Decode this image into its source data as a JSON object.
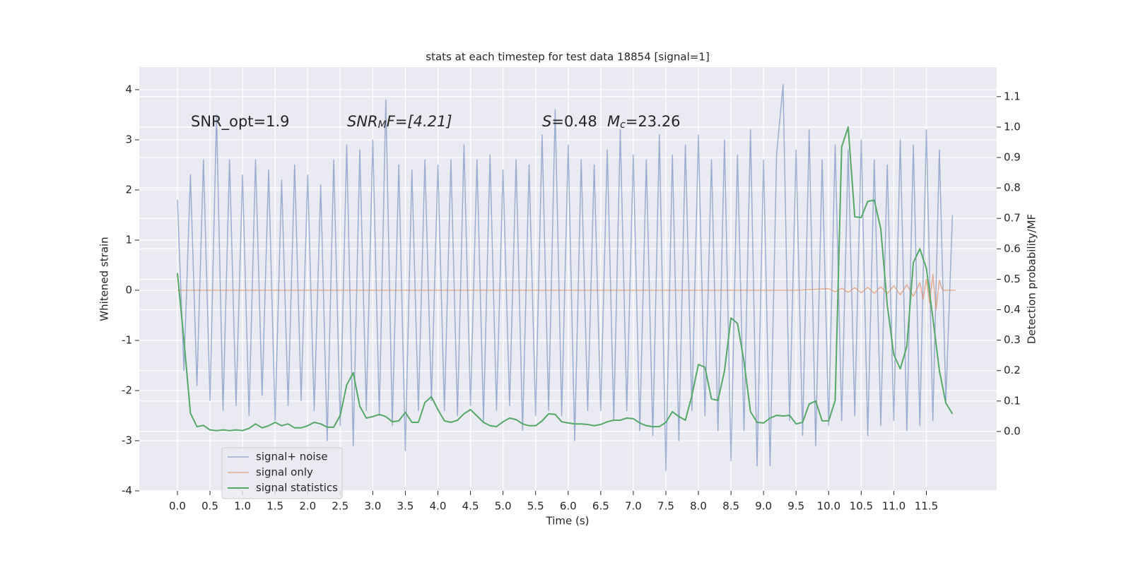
{
  "chart_data": {
    "type": "line",
    "title": "stats at each timestep for test data 18854 [signal=1]",
    "xlabel": "Time (s)",
    "ylabel": "Whitened strain",
    "y2label": "Detection probability/MF",
    "annotations": [
      {
        "parts": [
          {
            "text": "SNR_opt=1.9",
            "style": "normal"
          }
        ]
      },
      {
        "parts": [
          {
            "text": "SNR",
            "style": "italic"
          },
          {
            "text": "M",
            "style": "italic-sub"
          },
          {
            "text": "F=[4.21]",
            "style": "italic"
          }
        ]
      },
      {
        "parts": [
          {
            "text": "S",
            "style": "italic"
          },
          {
            "text": "=0.48",
            "style": "normal"
          }
        ]
      },
      {
        "parts": [
          {
            "text": "M",
            "style": "italic"
          },
          {
            "text": "c",
            "style": "italic-sub"
          },
          {
            "text": "=23.26",
            "style": "normal"
          }
        ]
      }
    ],
    "xlim": [
      -0.586,
      12.58
    ],
    "xticks": [
      {
        "value": 0,
        "label": "0.0"
      },
      0.5,
      {
        "value": 1,
        "label": "1.0"
      },
      1.5,
      {
        "value": 2,
        "label": "2.0"
      },
      2.5,
      {
        "value": 3,
        "label": "3.0"
      },
      3.5,
      {
        "value": 4,
        "label": "4.0"
      },
      4.5,
      {
        "value": 5,
        "label": "5.0"
      },
      5.5,
      {
        "value": 6,
        "label": "6.0"
      },
      6.5,
      {
        "value": 7,
        "label": "7.0"
      },
      7.5,
      {
        "value": 8,
        "label": "8.0"
      },
      8.5,
      {
        "value": 9,
        "label": "9.0"
      },
      9.5,
      {
        "value": 10,
        "label": "10.0"
      },
      10.5,
      {
        "value": 11,
        "label": "11.0"
      },
      11.5
    ],
    "ylim": [
      -4,
      4.45
    ],
    "yticks": [
      -4,
      -3,
      -2,
      -1,
      0,
      1,
      2,
      3,
      4
    ],
    "y2lim": [
      -0.195,
      1.197
    ],
    "y2ticks": [
      {
        "value": 0,
        "label": "0.0"
      },
      0.1,
      0.2,
      0.3,
      0.4,
      0.5,
      0.6,
      0.7,
      0.8,
      0.9,
      {
        "value": 1,
        "label": "1.0"
      },
      1.1
    ],
    "grid": true,
    "legend": "lower left",
    "x": [
      0.0,
      0.1,
      0.2,
      0.3,
      0.4,
      0.5,
      0.6,
      0.7,
      0.8,
      0.9,
      1.0,
      1.1,
      1.2,
      1.3,
      1.4,
      1.5,
      1.6,
      1.7,
      1.8,
      1.9,
      2.0,
      2.1,
      2.2,
      2.3,
      2.4,
      2.5,
      2.6,
      2.7,
      2.8,
      2.9,
      3.0,
      3.1,
      3.2,
      3.3,
      3.4,
      3.5,
      3.6,
      3.7,
      3.8,
      3.9,
      4.0,
      4.1,
      4.2,
      4.3,
      4.4,
      4.5,
      4.6,
      4.7,
      4.8,
      4.9,
      5.0,
      5.1,
      5.2,
      5.3,
      5.4,
      5.5,
      5.6,
      5.7,
      5.8,
      5.9,
      6.0,
      6.1,
      6.2,
      6.3,
      6.4,
      6.5,
      6.6,
      6.7,
      6.8,
      6.9,
      7.0,
      7.1,
      7.2,
      7.3,
      7.4,
      7.5,
      7.6,
      7.7,
      7.8,
      7.9,
      8.0,
      8.1,
      8.2,
      8.3,
      8.4,
      8.5,
      8.6,
      8.7,
      8.8,
      8.9,
      9.0,
      9.1,
      9.2,
      9.3,
      9.4,
      9.5,
      9.6,
      9.7,
      9.8,
      9.9,
      10.0,
      10.1,
      10.2,
      10.3,
      10.4,
      10.5,
      10.6,
      10.7,
      10.8,
      10.9,
      11.0,
      11.1,
      11.2,
      11.3,
      11.4,
      11.5,
      11.6,
      11.7,
      11.8,
      11.9
    ],
    "series": [
      {
        "name": "signal+ noise",
        "color": "#4c72b0",
        "values": [
          1.8,
          -1.6,
          2.3,
          -1.9,
          2.6,
          -2.2,
          3.5,
          -2.4,
          2.6,
          -2.3,
          2.3,
          -2.5,
          2.6,
          -2.1,
          2.4,
          -2.6,
          2.2,
          -2.3,
          2.5,
          -2.2,
          2.3,
          -2.4,
          2.1,
          -3.0,
          2.6,
          -2.7,
          2.9,
          -3.1,
          2.8,
          -2.4,
          3.0,
          -2.5,
          3.8,
          -2.7,
          2.5,
          -3.2,
          2.4,
          -2.4,
          2.6,
          -2.2,
          2.5,
          -2.4,
          2.6,
          -2.5,
          2.9,
          -2.3,
          2.6,
          -2.6,
          2.7,
          -2.4,
          2.4,
          -2.3,
          2.6,
          -2.8,
          2.5,
          -2.5,
          3.1,
          -2.4,
          3.6,
          -2.5,
          2.9,
          -3.0,
          2.6,
          -2.4,
          2.5,
          -2.4,
          2.8,
          -2.6,
          3.2,
          -2.4,
          2.7,
          -2.8,
          2.6,
          -2.9,
          3.1,
          -3.6,
          2.7,
          -3.0,
          2.9,
          -2.4,
          3.1,
          -2.5,
          2.6,
          -2.8,
          3.0,
          -3.4,
          2.7,
          -2.8,
          3.2,
          -3.5,
          2.6,
          -3.5,
          2.7,
          4.1,
          -2.6,
          2.8,
          -2.9,
          3.2,
          -3.1,
          2.6,
          -2.7,
          2.9,
          -2.6,
          2.8,
          -2.5,
          3.0,
          -2.9,
          2.6,
          -2.7,
          2.5,
          -2.6,
          3.0,
          -2.8,
          2.9,
          -2.7,
          3.2,
          -2.6,
          2.8,
          -2.2,
          1.5
        ]
      },
      {
        "name": "signal only",
        "color": "#dd8452",
        "x": [
          0,
          8.5,
          9.5,
          10.0,
          10.1,
          10.2,
          10.3,
          10.4,
          10.5,
          10.6,
          10.7,
          10.8,
          10.9,
          11.0,
          11.1,
          11.2,
          11.3,
          11.4,
          11.45,
          11.5,
          11.55,
          11.6,
          11.65,
          11.7,
          11.75,
          11.95
        ],
        "values": [
          0,
          0,
          0,
          0.03,
          -0.03,
          0.04,
          -0.04,
          0.05,
          -0.05,
          0.06,
          -0.06,
          0.07,
          -0.07,
          0.09,
          -0.09,
          0.11,
          -0.12,
          0.15,
          -0.18,
          0.22,
          -0.26,
          0.32,
          -0.38,
          0.2,
          0,
          0
        ]
      },
      {
        "name": "signal statistics",
        "color": "#55a868",
        "axis": "y2",
        "values": [
          0.52,
          0.3,
          0.06,
          0.016,
          0.02,
          0.005,
          0.003,
          0.005,
          0.003,
          0.005,
          0.003,
          0.01,
          0.025,
          0.012,
          0.019,
          0.03,
          0.019,
          0.025,
          0.012,
          0.012,
          0.019,
          0.03,
          0.025,
          0.014,
          0.014,
          0.053,
          0.153,
          0.193,
          0.083,
          0.044,
          0.049,
          0.056,
          0.049,
          0.032,
          0.035,
          0.063,
          0.03,
          0.03,
          0.095,
          0.114,
          0.072,
          0.035,
          0.03,
          0.037,
          0.058,
          0.072,
          0.051,
          0.03,
          0.019,
          0.016,
          0.032,
          0.044,
          0.039,
          0.025,
          0.019,
          0.019,
          0.035,
          0.058,
          0.056,
          0.032,
          0.028,
          0.025,
          0.025,
          0.023,
          0.019,
          0.023,
          0.032,
          0.037,
          0.037,
          0.044,
          0.042,
          0.028,
          0.019,
          0.016,
          0.016,
          0.03,
          0.065,
          0.049,
          0.037,
          0.118,
          0.22,
          0.211,
          0.107,
          0.102,
          0.199,
          0.373,
          0.355,
          0.23,
          0.065,
          0.03,
          0.028,
          0.044,
          0.053,
          0.051,
          0.053,
          0.025,
          0.03,
          0.09,
          0.1,
          0.035,
          0.035,
          0.102,
          0.935,
          1.0,
          0.705,
          0.703,
          0.756,
          0.76,
          0.666,
          0.415,
          0.253,
          0.206,
          0.28,
          0.555,
          0.6,
          0.536,
          0.373,
          0.2,
          0.093,
          0.058
        ]
      }
    ]
  }
}
